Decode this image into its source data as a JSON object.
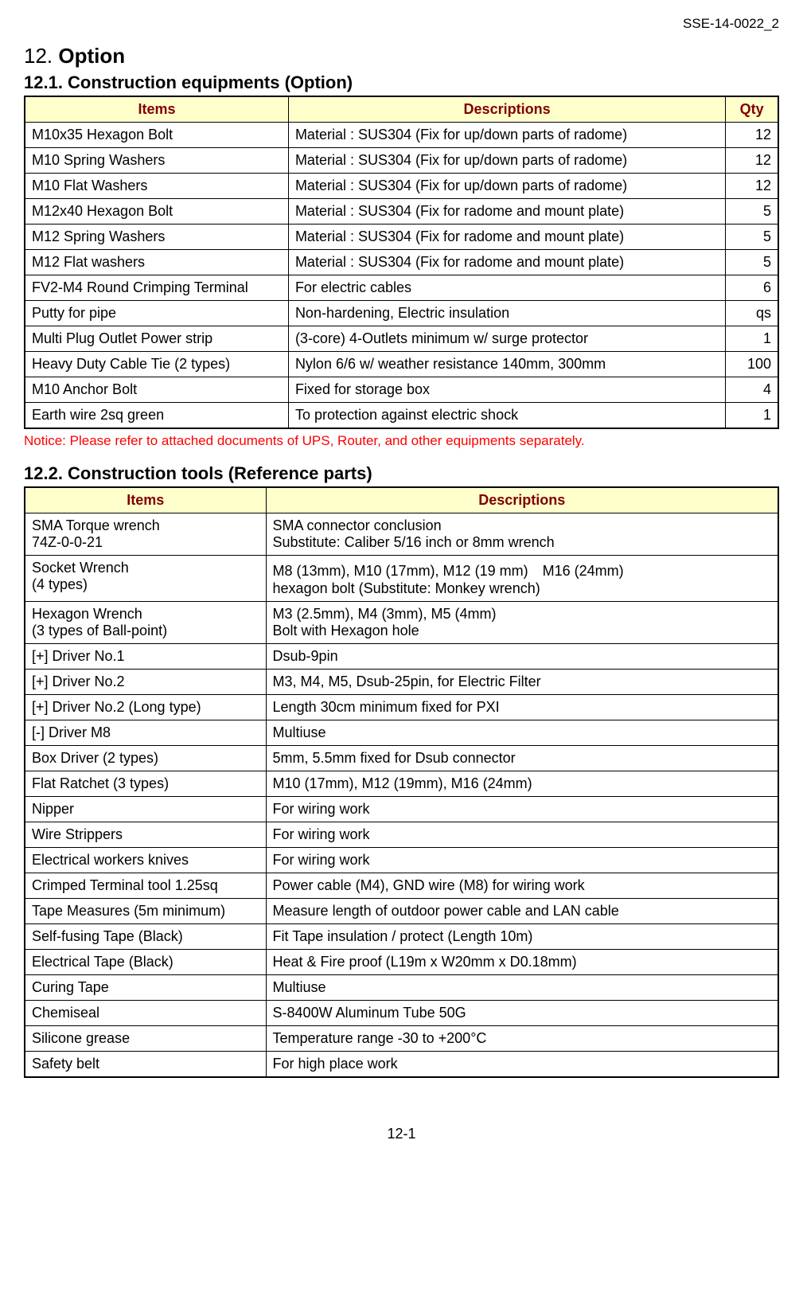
{
  "doc_id": "SSE-14-0022_2",
  "section": {
    "number": "12.",
    "name": "Option"
  },
  "subsection1": {
    "title": "12.1. Construction equipments (Option)",
    "headers": {
      "items": "Items",
      "descriptions": "Descriptions",
      "qty": "Qty"
    },
    "rows": [
      {
        "item": "M10x35 Hexagon Bolt",
        "desc": "Material : SUS304 (Fix for up/down parts of radome)",
        "qty": "12"
      },
      {
        "item": "M10 Spring Washers",
        "desc": "Material : SUS304 (Fix for up/down parts of radome)",
        "qty": "12"
      },
      {
        "item": "M10 Flat Washers",
        "desc": "Material : SUS304 (Fix for up/down parts of radome)",
        "qty": "12"
      },
      {
        "item": "M12x40 Hexagon Bolt",
        "desc": "Material : SUS304 (Fix for radome and mount plate)",
        "qty": "5"
      },
      {
        "item": "M12 Spring Washers",
        "desc": "Material : SUS304 (Fix for radome and mount plate)",
        "qty": "5"
      },
      {
        "item": "M12 Flat washers",
        "desc": "Material : SUS304 (Fix for radome and mount plate)",
        "qty": "5"
      },
      {
        "item": "FV2-M4 Round Crimping Terminal",
        "desc": "For electric cables",
        "qty": "6"
      },
      {
        "item": "Putty for pipe",
        "desc": "Non-hardening, Electric insulation",
        "qty": "qs"
      },
      {
        "item": "Multi Plug Outlet Power strip",
        "desc": "(3-core) 4-Outlets minimum w/ surge protector",
        "qty": "1"
      },
      {
        "item": "Heavy Duty Cable Tie (2 types)",
        "desc": "Nylon 6/6 w/ weather resistance 140mm, 300mm",
        "qty": "100"
      },
      {
        "item": "M10 Anchor Bolt",
        "desc": "Fixed for storage box",
        "qty": "4"
      },
      {
        "item": "Earth wire 2sq green",
        "desc": "To protection against electric shock",
        "qty": "1"
      }
    ],
    "notice": "Notice: Please refer to attached documents of UPS, Router, and other equipments separately."
  },
  "subsection2": {
    "title": "12.2. Construction tools (Reference parts)",
    "headers": {
      "items": "Items",
      "descriptions": "Descriptions"
    },
    "rows": [
      {
        "item": "SMA Torque wrench\n74Z-0-0-21",
        "desc": "SMA connector conclusion\nSubstitute: Caliber 5/16 inch or 8mm wrench"
      },
      {
        "item": "Socket Wrench\n(4 types)",
        "desc": "M8 (13mm), M10 (17mm), M12 (19 mm)　M16 (24mm)\nhexagon bolt (Substitute: Monkey wrench)"
      },
      {
        "item": "Hexagon Wrench\n(3 types of Ball-point)",
        "desc": "M3 (2.5mm), M4 (3mm), M5 (4mm)\nBolt with Hexagon hole"
      },
      {
        "item": "[+] Driver No.1",
        "desc": "Dsub-9pin"
      },
      {
        "item": "[+] Driver No.2",
        "desc": "M3, M4, M5, Dsub-25pin, for Electric Filter"
      },
      {
        "item": "[+] Driver No.2 (Long type)",
        "desc": "Length 30cm minimum fixed for PXI"
      },
      {
        "item": "[-] Driver M8",
        "desc": "Multiuse"
      },
      {
        "item": "Box Driver (2 types)",
        "desc": "5mm, 5.5mm fixed for Dsub connector"
      },
      {
        "item": "Flat Ratchet (3 types)",
        "desc": "M10 (17mm), M12 (19mm), M16 (24mm)"
      },
      {
        "item": "Nipper",
        "desc": "For wiring work"
      },
      {
        "item": "Wire Strippers",
        "desc": "For wiring work"
      },
      {
        "item": "Electrical workers knives",
        "desc": "For wiring work"
      },
      {
        "item": "Crimped Terminal tool 1.25sq",
        "desc": "Power cable (M4), GND wire (M8) for wiring work"
      },
      {
        "item": "Tape Measures (5m minimum)",
        "desc": "Measure length of outdoor power cable and LAN cable"
      },
      {
        "item": "Self-fusing Tape (Black)",
        "desc": "Fit Tape insulation / protect (Length 10m)"
      },
      {
        "item": "Electrical Tape (Black)",
        "desc": "Heat & Fire proof (L19m x W20mm x D0.18mm)"
      },
      {
        "item": "Curing Tape",
        "desc": "Multiuse"
      },
      {
        "item": "Chemiseal",
        "desc": "S-8400W Aluminum Tube 50G"
      },
      {
        "item": "Silicone grease",
        "desc": "Temperature range -30 to +200°C"
      },
      {
        "item": "Safety belt",
        "desc": "For high place work"
      }
    ]
  },
  "page_number": "12-1",
  "colors": {
    "header_bg": "#ffffcc",
    "header_text": "#800000",
    "notice_text": "#ff0000",
    "border": "#000000",
    "background": "#ffffff"
  }
}
